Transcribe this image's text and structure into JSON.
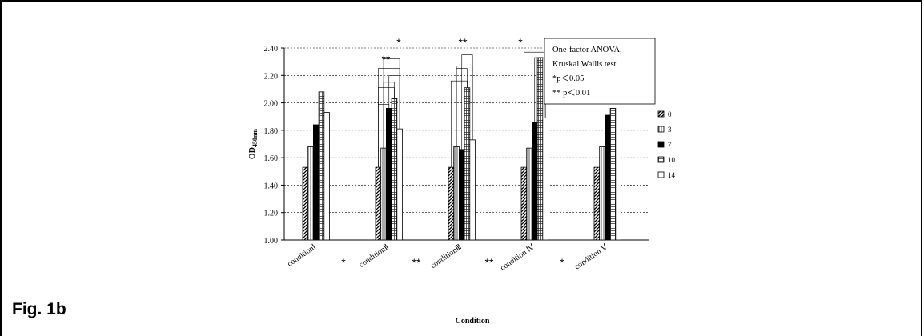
{
  "figure_label": "Fig. 1b",
  "chart_data": {
    "type": "bar",
    "xlabel": "Condition",
    "ylabel": "OD",
    "ylabel_sub": "450nm",
    "ylim": [
      1.0,
      2.4
    ],
    "yticks": [
      "1.00",
      "1.20",
      "1.40",
      "1.60",
      "1.80",
      "2.00",
      "2.20",
      "2.40"
    ],
    "grid": "horizontal dotted",
    "legend_position": "right",
    "categories": [
      "conditionⅠ",
      "conditionⅡ",
      "conditionⅢ",
      "condition Ⅳ",
      "condition Ⅴ"
    ],
    "series": [
      {
        "name": "0",
        "pattern": "diagonal",
        "values": [
          1.53,
          1.53,
          1.53,
          1.53,
          1.53
        ]
      },
      {
        "name": "3",
        "pattern": "vertical",
        "values": [
          1.68,
          1.67,
          1.68,
          1.67,
          1.68
        ]
      },
      {
        "name": "7",
        "pattern": "solid",
        "values": [
          1.84,
          1.96,
          1.66,
          1.86,
          1.91
        ]
      },
      {
        "name": "10",
        "pattern": "grid",
        "values": [
          2.08,
          2.03,
          2.11,
          2.33,
          1.96
        ]
      },
      {
        "name": "14",
        "pattern": "empty",
        "values": [
          1.93,
          1.81,
          1.73,
          1.89,
          1.89
        ]
      }
    ],
    "significance_top": [
      "*",
      "**",
      "**",
      "*"
    ],
    "significance_bottom": [
      "*",
      "**",
      "**",
      "*",
      ""
    ],
    "note_lines": [
      "One-factor ANOVA,",
      "Kruskal Wallis test",
      "*p＜0.05",
      "** p＜0.01"
    ]
  }
}
